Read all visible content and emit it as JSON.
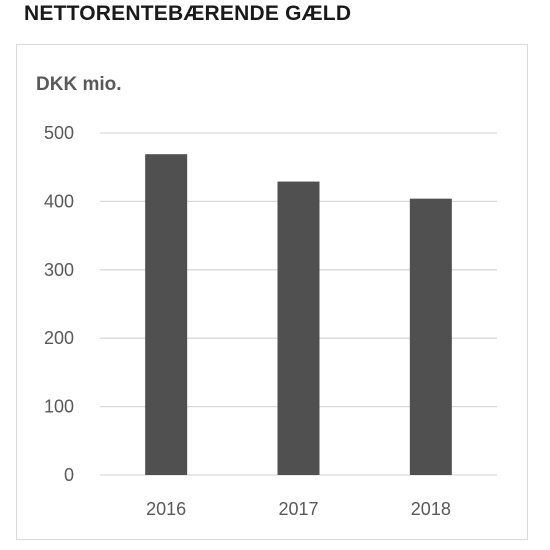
{
  "chart_data": {
    "type": "bar",
    "title": "NETTORENTEBÆRENDE GÆLD",
    "ylabel": "DKK mio.",
    "categories": [
      "2016",
      "2017",
      "2018"
    ],
    "values": [
      469,
      429,
      404
    ],
    "ylim": [
      0,
      500
    ],
    "yticks": [
      0,
      100,
      200,
      300,
      400,
      500
    ],
    "grid": true,
    "bar_color": "#505050",
    "grid_color": "#d9d9d9"
  }
}
